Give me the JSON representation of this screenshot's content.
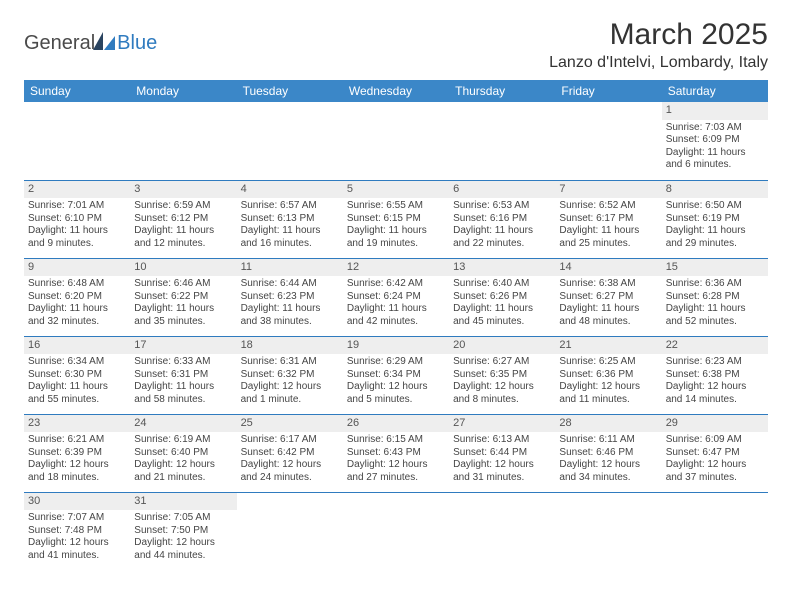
{
  "logo": {
    "part1": "General",
    "part2": "Blue"
  },
  "title": "March 2025",
  "location": "Lanzo d'Intelvi, Lombardy, Italy",
  "colors": {
    "header_bg": "#3b87c8",
    "header_text": "#ffffff",
    "row_divider": "#2f7bbf",
    "daynum_bg": "#eeeeee",
    "text": "#454545",
    "logo_blue": "#2f7bbf",
    "logo_dark": "#2a4460"
  },
  "day_headers": [
    "Sunday",
    "Monday",
    "Tuesday",
    "Wednesday",
    "Thursday",
    "Friday",
    "Saturday"
  ],
  "weeks": [
    [
      {
        "n": "",
        "sunrise": "",
        "sunset": "",
        "daylight": ""
      },
      {
        "n": "",
        "sunrise": "",
        "sunset": "",
        "daylight": ""
      },
      {
        "n": "",
        "sunrise": "",
        "sunset": "",
        "daylight": ""
      },
      {
        "n": "",
        "sunrise": "",
        "sunset": "",
        "daylight": ""
      },
      {
        "n": "",
        "sunrise": "",
        "sunset": "",
        "daylight": ""
      },
      {
        "n": "",
        "sunrise": "",
        "sunset": "",
        "daylight": ""
      },
      {
        "n": "1",
        "sunrise": "Sunrise: 7:03 AM",
        "sunset": "Sunset: 6:09 PM",
        "daylight": "Daylight: 11 hours and 6 minutes."
      }
    ],
    [
      {
        "n": "2",
        "sunrise": "Sunrise: 7:01 AM",
        "sunset": "Sunset: 6:10 PM",
        "daylight": "Daylight: 11 hours and 9 minutes."
      },
      {
        "n": "3",
        "sunrise": "Sunrise: 6:59 AM",
        "sunset": "Sunset: 6:12 PM",
        "daylight": "Daylight: 11 hours and 12 minutes."
      },
      {
        "n": "4",
        "sunrise": "Sunrise: 6:57 AM",
        "sunset": "Sunset: 6:13 PM",
        "daylight": "Daylight: 11 hours and 16 minutes."
      },
      {
        "n": "5",
        "sunrise": "Sunrise: 6:55 AM",
        "sunset": "Sunset: 6:15 PM",
        "daylight": "Daylight: 11 hours and 19 minutes."
      },
      {
        "n": "6",
        "sunrise": "Sunrise: 6:53 AM",
        "sunset": "Sunset: 6:16 PM",
        "daylight": "Daylight: 11 hours and 22 minutes."
      },
      {
        "n": "7",
        "sunrise": "Sunrise: 6:52 AM",
        "sunset": "Sunset: 6:17 PM",
        "daylight": "Daylight: 11 hours and 25 minutes."
      },
      {
        "n": "8",
        "sunrise": "Sunrise: 6:50 AM",
        "sunset": "Sunset: 6:19 PM",
        "daylight": "Daylight: 11 hours and 29 minutes."
      }
    ],
    [
      {
        "n": "9",
        "sunrise": "Sunrise: 6:48 AM",
        "sunset": "Sunset: 6:20 PM",
        "daylight": "Daylight: 11 hours and 32 minutes."
      },
      {
        "n": "10",
        "sunrise": "Sunrise: 6:46 AM",
        "sunset": "Sunset: 6:22 PM",
        "daylight": "Daylight: 11 hours and 35 minutes."
      },
      {
        "n": "11",
        "sunrise": "Sunrise: 6:44 AM",
        "sunset": "Sunset: 6:23 PM",
        "daylight": "Daylight: 11 hours and 38 minutes."
      },
      {
        "n": "12",
        "sunrise": "Sunrise: 6:42 AM",
        "sunset": "Sunset: 6:24 PM",
        "daylight": "Daylight: 11 hours and 42 minutes."
      },
      {
        "n": "13",
        "sunrise": "Sunrise: 6:40 AM",
        "sunset": "Sunset: 6:26 PM",
        "daylight": "Daylight: 11 hours and 45 minutes."
      },
      {
        "n": "14",
        "sunrise": "Sunrise: 6:38 AM",
        "sunset": "Sunset: 6:27 PM",
        "daylight": "Daylight: 11 hours and 48 minutes."
      },
      {
        "n": "15",
        "sunrise": "Sunrise: 6:36 AM",
        "sunset": "Sunset: 6:28 PM",
        "daylight": "Daylight: 11 hours and 52 minutes."
      }
    ],
    [
      {
        "n": "16",
        "sunrise": "Sunrise: 6:34 AM",
        "sunset": "Sunset: 6:30 PM",
        "daylight": "Daylight: 11 hours and 55 minutes."
      },
      {
        "n": "17",
        "sunrise": "Sunrise: 6:33 AM",
        "sunset": "Sunset: 6:31 PM",
        "daylight": "Daylight: 11 hours and 58 minutes."
      },
      {
        "n": "18",
        "sunrise": "Sunrise: 6:31 AM",
        "sunset": "Sunset: 6:32 PM",
        "daylight": "Daylight: 12 hours and 1 minute."
      },
      {
        "n": "19",
        "sunrise": "Sunrise: 6:29 AM",
        "sunset": "Sunset: 6:34 PM",
        "daylight": "Daylight: 12 hours and 5 minutes."
      },
      {
        "n": "20",
        "sunrise": "Sunrise: 6:27 AM",
        "sunset": "Sunset: 6:35 PM",
        "daylight": "Daylight: 12 hours and 8 minutes."
      },
      {
        "n": "21",
        "sunrise": "Sunrise: 6:25 AM",
        "sunset": "Sunset: 6:36 PM",
        "daylight": "Daylight: 12 hours and 11 minutes."
      },
      {
        "n": "22",
        "sunrise": "Sunrise: 6:23 AM",
        "sunset": "Sunset: 6:38 PM",
        "daylight": "Daylight: 12 hours and 14 minutes."
      }
    ],
    [
      {
        "n": "23",
        "sunrise": "Sunrise: 6:21 AM",
        "sunset": "Sunset: 6:39 PM",
        "daylight": "Daylight: 12 hours and 18 minutes."
      },
      {
        "n": "24",
        "sunrise": "Sunrise: 6:19 AM",
        "sunset": "Sunset: 6:40 PM",
        "daylight": "Daylight: 12 hours and 21 minutes."
      },
      {
        "n": "25",
        "sunrise": "Sunrise: 6:17 AM",
        "sunset": "Sunset: 6:42 PM",
        "daylight": "Daylight: 12 hours and 24 minutes."
      },
      {
        "n": "26",
        "sunrise": "Sunrise: 6:15 AM",
        "sunset": "Sunset: 6:43 PM",
        "daylight": "Daylight: 12 hours and 27 minutes."
      },
      {
        "n": "27",
        "sunrise": "Sunrise: 6:13 AM",
        "sunset": "Sunset: 6:44 PM",
        "daylight": "Daylight: 12 hours and 31 minutes."
      },
      {
        "n": "28",
        "sunrise": "Sunrise: 6:11 AM",
        "sunset": "Sunset: 6:46 PM",
        "daylight": "Daylight: 12 hours and 34 minutes."
      },
      {
        "n": "29",
        "sunrise": "Sunrise: 6:09 AM",
        "sunset": "Sunset: 6:47 PM",
        "daylight": "Daylight: 12 hours and 37 minutes."
      }
    ],
    [
      {
        "n": "30",
        "sunrise": "Sunrise: 7:07 AM",
        "sunset": "Sunset: 7:48 PM",
        "daylight": "Daylight: 12 hours and 41 minutes."
      },
      {
        "n": "31",
        "sunrise": "Sunrise: 7:05 AM",
        "sunset": "Sunset: 7:50 PM",
        "daylight": "Daylight: 12 hours and 44 minutes."
      },
      {
        "n": "",
        "sunrise": "",
        "sunset": "",
        "daylight": ""
      },
      {
        "n": "",
        "sunrise": "",
        "sunset": "",
        "daylight": ""
      },
      {
        "n": "",
        "sunrise": "",
        "sunset": "",
        "daylight": ""
      },
      {
        "n": "",
        "sunrise": "",
        "sunset": "",
        "daylight": ""
      },
      {
        "n": "",
        "sunrise": "",
        "sunset": "",
        "daylight": ""
      }
    ]
  ]
}
